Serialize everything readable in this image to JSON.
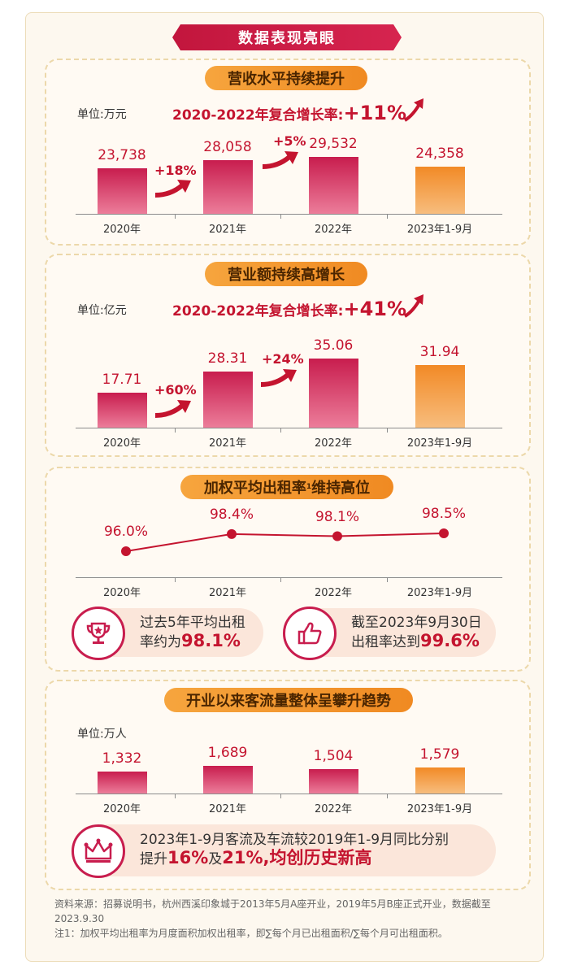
{
  "page_title": "数据表现亮眼",
  "colors": {
    "accent": "#c81d4e",
    "orange": "#f08a22",
    "text_red": "#c4142f"
  },
  "sections": {
    "revenue": {
      "title": "营收水平持续提升",
      "unit": "单位:万元",
      "cagr_label": "2020-2022年复合增长率:",
      "cagr_value": "+11%",
      "growth": [
        "+18%",
        "+5%"
      ]
    },
    "sales": {
      "title": "营业额持续高增长",
      "unit": "单位:亿元",
      "cagr_label": "2020-2022年复合增长率:",
      "cagr_value": "+41%",
      "growth": [
        "+60%",
        "+24%"
      ]
    },
    "occupancy": {
      "title_main": "加权平均出租率",
      "title_sup": "1",
      "title_tail": "维持高位",
      "card1": {
        "line1": "过去5年平均出租",
        "line2_prefix": "率约为",
        "highlight": "98.1%",
        "icon": "trophy-icon"
      },
      "card2": {
        "line1": "截至2023年9月30日",
        "line2_prefix": "出租率达到",
        "highlight": "99.6%",
        "icon": "thumbs-up-icon"
      }
    },
    "traffic": {
      "title": "开业以来客流量整体呈攀升趋势",
      "unit": "单位:万人",
      "card": {
        "line1": "2023年1-9月客流及车流较2019年1-9月同比分别",
        "prefix": "提升",
        "v1": "16%",
        "mid": "及",
        "v2": "21%",
        "tail": ",均创历史新高",
        "icon": "crown-icon"
      }
    }
  },
  "chart_data": [
    {
      "type": "bar",
      "title": "营收水平持续提升",
      "categories": [
        "2020年",
        "2021年",
        "2022年",
        "2023年1-9月"
      ],
      "values": [
        23738,
        28058,
        29532,
        24358
      ],
      "value_labels": [
        "23,738",
        "28,058",
        "29,532",
        "24,358"
      ],
      "ylabel": "单位:万元",
      "ylim": [
        0,
        38000
      ],
      "highlight_last": true
    },
    {
      "type": "bar",
      "title": "营业额持续高增长",
      "categories": [
        "2020年",
        "2021年",
        "2022年",
        "2023年1-9月"
      ],
      "values": [
        17.71,
        28.31,
        35.06,
        31.94
      ],
      "value_labels": [
        "17.71",
        "28.31",
        "35.06",
        "31.94"
      ],
      "ylabel": "单位:亿元",
      "ylim": [
        0,
        38
      ],
      "highlight_last": true
    },
    {
      "type": "line",
      "title": "加权平均出租率维持高位",
      "categories": [
        "2020年",
        "2021年",
        "2022年",
        "2023年1-9月"
      ],
      "values": [
        96.0,
        98.4,
        98.1,
        98.5
      ],
      "value_labels": [
        "96.0%",
        "98.4%",
        "98.1%",
        "98.5%"
      ],
      "ylim": [
        90,
        100
      ]
    },
    {
      "type": "bar",
      "title": "开业以来客流量整体呈攀升趋势",
      "categories": [
        "2020年",
        "2021年",
        "2022年",
        "2023年1-9月"
      ],
      "values": [
        1332,
        1689,
        1504,
        1579
      ],
      "value_labels": [
        "1,332",
        "1,689",
        "1,504",
        "1,579"
      ],
      "ylabel": "单位:万人",
      "ylim": [
        0,
        1689
      ],
      "highlight_last": true
    }
  ],
  "footnote": {
    "source": "资料来源：招募说明书，杭州西溪印象城于2013年5月A座开业，2019年5月B座正式开业，数据截至2023.9.30",
    "note": "注1：加权平均出租率为月度面积加权出租率，即∑每个月已出租面积/∑每个月可出租面积。"
  }
}
